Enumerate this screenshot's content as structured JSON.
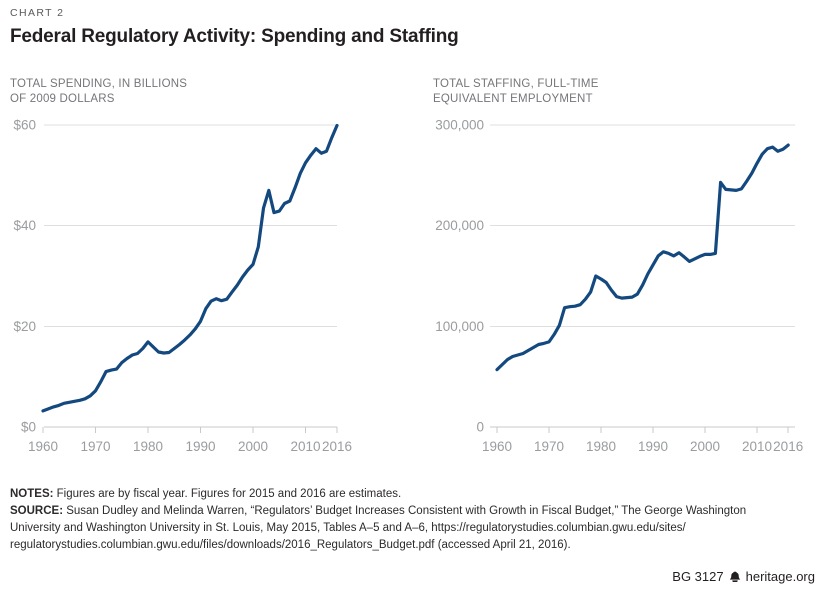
{
  "header": {
    "eyebrow": "CHART 2",
    "title": "Federal Regulatory Activity: Spending and Staffing"
  },
  "colors": {
    "line": "#14497F",
    "gridline": "#DEDFDF",
    "axis_line": "#C8C9CB",
    "axis_text": "#9A9C9F",
    "title_text": "#231F20",
    "subtitle_text": "#75767A"
  },
  "chart_data": [
    {
      "type": "line",
      "title": "TOTAL SPENDING, IN BILLIONS OF 2009 DOLLARS",
      "subtitle_lines": [
        "TOTAL SPENDING, IN BILLIONS",
        "OF 2009 DOLLARS"
      ],
      "xlabel": "",
      "ylabel": "",
      "xlim": [
        1960,
        2016
      ],
      "ylim": [
        0,
        60
      ],
      "grid": "horizontal",
      "legend": "none",
      "line_color": "#14497F",
      "y_ticks": [
        {
          "value": 0,
          "label": "$0"
        },
        {
          "value": 20,
          "label": "$20"
        },
        {
          "value": 40,
          "label": "$40"
        },
        {
          "value": 60,
          "label": "$60"
        }
      ],
      "x_ticks": [
        {
          "value": 1960,
          "label": "1960"
        },
        {
          "value": 1970,
          "label": "1970"
        },
        {
          "value": 1980,
          "label": "1980"
        },
        {
          "value": 1990,
          "label": "1990"
        },
        {
          "value": 2000,
          "label": "2000"
        },
        {
          "value": 2010,
          "label": "2010"
        },
        {
          "value": 2016,
          "label": "2016"
        }
      ],
      "x": [
        1960,
        1961,
        1962,
        1963,
        1964,
        1965,
        1966,
        1967,
        1968,
        1969,
        1970,
        1971,
        1972,
        1973,
        1974,
        1975,
        1976,
        1977,
        1978,
        1979,
        1980,
        1981,
        1982,
        1983,
        1984,
        1985,
        1986,
        1987,
        1988,
        1989,
        1990,
        1991,
        1992,
        1993,
        1994,
        1995,
        1996,
        1997,
        1998,
        1999,
        2000,
        2001,
        2002,
        2003,
        2004,
        2005,
        2006,
        2007,
        2008,
        2009,
        2010,
        2011,
        2012,
        2013,
        2014,
        2015,
        2016
      ],
      "values": [
        3.2,
        3.6,
        4.0,
        4.3,
        4.7,
        4.9,
        5.1,
        5.3,
        5.6,
        6.2,
        7.2,
        9.0,
        11.0,
        11.3,
        11.5,
        12.8,
        13.6,
        14.3,
        14.6,
        15.6,
        16.9,
        15.9,
        14.9,
        14.7,
        14.8,
        15.6,
        16.4,
        17.3,
        18.3,
        19.5,
        21.0,
        23.5,
        25.0,
        25.5,
        25.1,
        25.4,
        26.8,
        28.2,
        29.8,
        31.2,
        32.3,
        35.8,
        43.5,
        47.0,
        42.6,
        42.9,
        44.4,
        44.9,
        47.5,
        50.4,
        52.5,
        54.0,
        55.3,
        54.4,
        54.8,
        57.5,
        59.9
      ]
    },
    {
      "type": "line",
      "title": "TOTAL STAFFING, FULL-TIME EQUIVALENT EMPLOYMENT",
      "subtitle_lines": [
        "TOTAL STAFFING, FULL-TIME",
        "EQUIVALENT EMPLOYMENT"
      ],
      "xlabel": "",
      "ylabel": "",
      "xlim": [
        1960,
        2016
      ],
      "ylim": [
        0,
        300000
      ],
      "grid": "horizontal",
      "legend": "none",
      "line_color": "#14497F",
      "y_ticks": [
        {
          "value": 0,
          "label": "0"
        },
        {
          "value": 100000,
          "label": "100,000"
        },
        {
          "value": 200000,
          "label": "200,000"
        },
        {
          "value": 300000,
          "label": "300,000"
        }
      ],
      "x_ticks": [
        {
          "value": 1960,
          "label": "1960"
        },
        {
          "value": 1970,
          "label": "1970"
        },
        {
          "value": 1980,
          "label": "1980"
        },
        {
          "value": 1990,
          "label": "1990"
        },
        {
          "value": 2000,
          "label": "2000"
        },
        {
          "value": 2010,
          "label": "2010"
        },
        {
          "value": 2016,
          "label": "2016"
        }
      ],
      "x": [
        1960,
        1961,
        1962,
        1963,
        1964,
        1965,
        1966,
        1967,
        1968,
        1969,
        1970,
        1971,
        1972,
        1973,
        1974,
        1975,
        1976,
        1977,
        1978,
        1979,
        1980,
        1981,
        1982,
        1983,
        1984,
        1985,
        1986,
        1987,
        1988,
        1989,
        1990,
        1991,
        1992,
        1993,
        1994,
        1995,
        1996,
        1997,
        1998,
        1999,
        2000,
        2001,
        2002,
        2003,
        2004,
        2005,
        2006,
        2007,
        2008,
        2009,
        2010,
        2011,
        2012,
        2013,
        2014,
        2015,
        2016
      ],
      "values": [
        57000,
        62000,
        67000,
        70000,
        71500,
        73000,
        76000,
        79000,
        82000,
        83000,
        84500,
        92000,
        101000,
        118500,
        119500,
        120000,
        121500,
        127000,
        134000,
        150000,
        147000,
        143500,
        136000,
        129500,
        128000,
        128500,
        129000,
        132000,
        141000,
        152000,
        161000,
        170000,
        174000,
        172500,
        170000,
        173000,
        169000,
        164500,
        167000,
        169500,
        171500,
        171500,
        172500,
        243000,
        236000,
        235500,
        235000,
        236500,
        244000,
        252000,
        262000,
        271000,
        276500,
        278000,
        274000,
        276000,
        280000
      ]
    }
  ],
  "notes": {
    "lines": [
      {
        "label": "NOTES:",
        "text": " Figures are by fiscal year. Figures for 2015 and 2016 are estimates."
      },
      {
        "label": "SOURCE:",
        "text": " Susan Dudley and Melinda Warren, “Regulators’ Budget Increases Consistent with Growth in Fiscal Budget,” The George Washington"
      },
      {
        "label": "",
        "text": "University and Washington University in St. Louis, May 2015, Tables A–5 and A–6, https://regulatorystudies.columbian.gwu.edu/sites/"
      },
      {
        "label": "",
        "text": "regulatorystudies.columbian.gwu.edu/files/downloads/2016_Regulators_Budget.pdf (accessed April 21, 2016)."
      }
    ]
  },
  "footer": {
    "doc_id": "BG 3127",
    "site": "heritage.org"
  }
}
